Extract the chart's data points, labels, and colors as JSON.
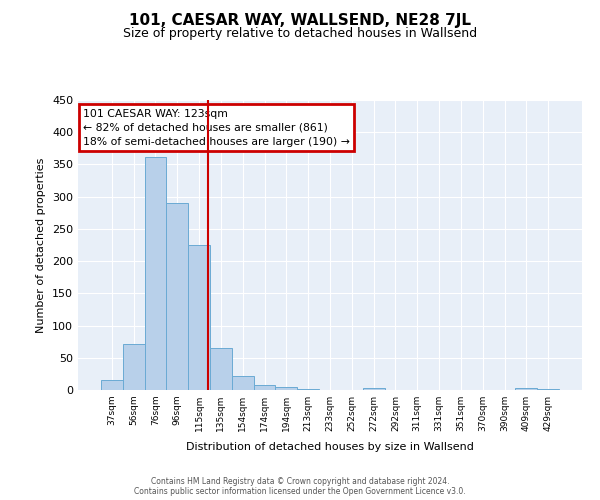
{
  "title": "101, CAESAR WAY, WALLSEND, NE28 7JL",
  "subtitle": "Size of property relative to detached houses in Wallsend",
  "xlabel": "Distribution of detached houses by size in Wallsend",
  "ylabel": "Number of detached properties",
  "bar_labels": [
    "37sqm",
    "56sqm",
    "76sqm",
    "96sqm",
    "115sqm",
    "135sqm",
    "154sqm",
    "174sqm",
    "194sqm",
    "213sqm",
    "233sqm",
    "252sqm",
    "272sqm",
    "292sqm",
    "311sqm",
    "331sqm",
    "351sqm",
    "370sqm",
    "390sqm",
    "409sqm",
    "429sqm"
  ],
  "bar_values": [
    15,
    72,
    362,
    290,
    225,
    65,
    22,
    8,
    4,
    2,
    0,
    0,
    3,
    0,
    0,
    0,
    0,
    0,
    0,
    3,
    2
  ],
  "bar_color": "#b8d0ea",
  "bar_edge_color": "#6aaad4",
  "vline_color": "#cc0000",
  "vline_x_index": 4,
  "annotation_title": "101 CAESAR WAY: 123sqm",
  "annotation_line1": "← 82% of detached houses are smaller (861)",
  "annotation_line2": "18% of semi-detached houses are larger (190) →",
  "annotation_box_edge_color": "#cc0000",
  "ylim": [
    0,
    450
  ],
  "yticks": [
    0,
    50,
    100,
    150,
    200,
    250,
    300,
    350,
    400,
    450
  ],
  "footer1": "Contains HM Land Registry data © Crown copyright and database right 2024.",
  "footer2": "Contains public sector information licensed under the Open Government Licence v3.0.",
  "bg_color": "#e8eff8",
  "fig_bg_color": "#ffffff",
  "grid_color": "#ffffff",
  "title_fontsize": 11,
  "subtitle_fontsize": 9
}
